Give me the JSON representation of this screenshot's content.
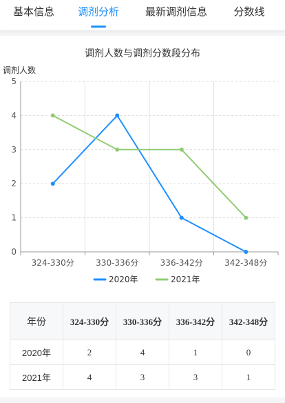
{
  "tabs": [
    {
      "label": "基本信息",
      "active": false
    },
    {
      "label": "调剂分析",
      "active": true
    },
    {
      "label": "最新调剂信息",
      "active": false
    },
    {
      "label": "分数线",
      "active": false
    }
  ],
  "chart_data": {
    "type": "line",
    "title": "调剂人数与调剂分数段分布",
    "ylabel": "调剂人数",
    "xlabel": "",
    "categories": [
      "324-330分",
      "330-336分",
      "336-342分",
      "342-348分"
    ],
    "ylim": [
      0,
      5
    ],
    "yticks": [
      0,
      1,
      2,
      3,
      4,
      5
    ],
    "grid": true,
    "legend": "bottom",
    "series": [
      {
        "name": "2020年",
        "values": [
          2,
          4,
          1,
          0
        ],
        "color": "#1e90ff"
      },
      {
        "name": "2021年",
        "values": [
          4,
          3,
          3,
          1
        ],
        "color": "#91cc75"
      }
    ]
  },
  "table": {
    "header": [
      "年份",
      "324-330分",
      "330-336分",
      "336-342分",
      "342-348分"
    ],
    "rows": [
      [
        "2020年",
        "2",
        "4",
        "1",
        "0"
      ],
      [
        "2021年",
        "4",
        "3",
        "3",
        "1"
      ]
    ]
  }
}
